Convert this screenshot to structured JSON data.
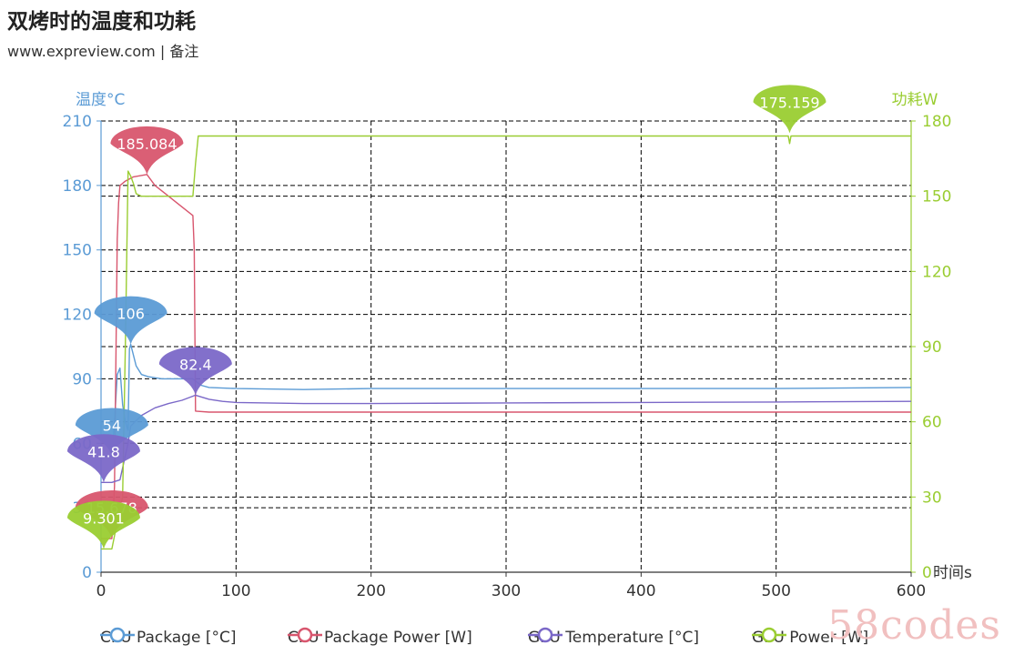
{
  "title": "双烤时的温度和功耗",
  "subtitle": "www.expreview.com | 备注",
  "watermark": "58codes",
  "chart_data": {
    "type": "line",
    "x_axis": {
      "label": "时间s",
      "min": 0,
      "max": 600,
      "ticks": [
        0,
        100,
        200,
        300,
        400,
        500,
        600
      ]
    },
    "y_left": {
      "label": "温度°C",
      "min": 0,
      "max": 210,
      "ticks": [
        0,
        30,
        60,
        90,
        120,
        150,
        180,
        210
      ],
      "color": "#5b9bd5"
    },
    "y_right": {
      "label": "功耗W",
      "min": 0,
      "max": 180,
      "ticks": [
        0,
        30,
        60,
        90,
        120,
        150,
        180
      ],
      "color": "#9acd32"
    },
    "grid": true,
    "legend_position": "bottom",
    "series": [
      {
        "name": "CPU Package [°C]",
        "axis": "left",
        "color": "#5b9bd5",
        "points": [
          [
            0,
            54
          ],
          [
            8,
            54
          ],
          [
            10,
            70
          ],
          [
            12,
            92
          ],
          [
            14,
            95
          ],
          [
            16,
            78
          ],
          [
            18,
            70
          ],
          [
            20,
            66
          ],
          [
            21,
            104
          ],
          [
            22,
            106
          ],
          [
            26,
            96
          ],
          [
            30,
            92
          ],
          [
            35,
            91
          ],
          [
            45,
            90
          ],
          [
            60,
            90
          ],
          [
            68,
            90
          ],
          [
            70,
            89
          ],
          [
            74,
            87
          ],
          [
            80,
            86
          ],
          [
            100,
            85.5
          ],
          [
            150,
            85
          ],
          [
            200,
            85.5
          ],
          [
            300,
            85.5
          ],
          [
            400,
            85.5
          ],
          [
            500,
            85.5
          ],
          [
            600,
            86
          ]
        ],
        "annotations": [
          {
            "label": "106",
            "x": 22,
            "y": 106
          },
          {
            "label": "54",
            "x": 8,
            "y": 54
          }
        ]
      },
      {
        "name": "CPU Package Power [W]",
        "axis": "left",
        "color": "#d8566e",
        "points": [
          [
            0,
            15.678
          ],
          [
            8,
            15.678
          ],
          [
            10,
            40
          ],
          [
            12,
            155
          ],
          [
            13,
            172
          ],
          [
            14,
            180
          ],
          [
            18,
            182
          ],
          [
            24,
            184
          ],
          [
            34,
            185.084
          ],
          [
            40,
            180
          ],
          [
            48,
            176
          ],
          [
            56,
            172
          ],
          [
            64,
            168
          ],
          [
            68,
            166
          ],
          [
            69,
            150
          ],
          [
            70,
            75
          ],
          [
            80,
            74.5
          ],
          [
            150,
            74.5
          ],
          [
            300,
            74.5
          ],
          [
            450,
            74.5
          ],
          [
            600,
            74.5
          ]
        ],
        "annotations": [
          {
            "label": "185.084",
            "x": 34,
            "y": 185.084
          },
          {
            "label": "15.678",
            "x": 8,
            "y": 15.678
          }
        ]
      },
      {
        "name": "GPU Temperature [°C]",
        "axis": "left",
        "color": "#7b68c8",
        "points": [
          [
            0,
            41.8
          ],
          [
            8,
            41.8
          ],
          [
            14,
            43
          ],
          [
            20,
            60
          ],
          [
            22,
            68
          ],
          [
            30,
            73
          ],
          [
            40,
            76.5
          ],
          [
            50,
            78.5
          ],
          [
            60,
            80
          ],
          [
            70,
            82.4
          ],
          [
            80,
            80.5
          ],
          [
            90,
            79.5
          ],
          [
            100,
            79
          ],
          [
            150,
            78.5
          ],
          [
            200,
            78.5
          ],
          [
            300,
            78.8
          ],
          [
            400,
            79
          ],
          [
            500,
            79.2
          ],
          [
            600,
            79.5
          ]
        ],
        "annotations": [
          {
            "label": "82.4",
            "x": 70,
            "y": 82.4
          },
          {
            "label": "41.8",
            "x": 2,
            "y": 41.8
          }
        ]
      },
      {
        "name": "GPU Power [W]",
        "axis": "right",
        "color": "#9acd32",
        "points": [
          [
            0,
            9.301
          ],
          [
            8,
            9.301
          ],
          [
            12,
            20
          ],
          [
            16,
            30
          ],
          [
            18,
            90
          ],
          [
            20,
            160
          ],
          [
            22,
            158
          ],
          [
            24,
            155
          ],
          [
            26,
            151
          ],
          [
            30,
            150
          ],
          [
            40,
            150
          ],
          [
            50,
            150
          ],
          [
            60,
            150
          ],
          [
            68,
            150
          ],
          [
            70,
            163
          ],
          [
            72,
            174
          ],
          [
            80,
            174
          ],
          [
            150,
            174
          ],
          [
            300,
            174
          ],
          [
            450,
            174
          ],
          [
            509,
            174
          ],
          [
            510,
            171
          ],
          [
            511,
            174
          ],
          [
            600,
            174
          ]
        ],
        "annotations": [
          {
            "label": "175.159",
            "x": 510,
            "y": 175.159
          },
          {
            "label": "9.301",
            "x": 2,
            "y": 9.301
          }
        ]
      }
    ]
  }
}
